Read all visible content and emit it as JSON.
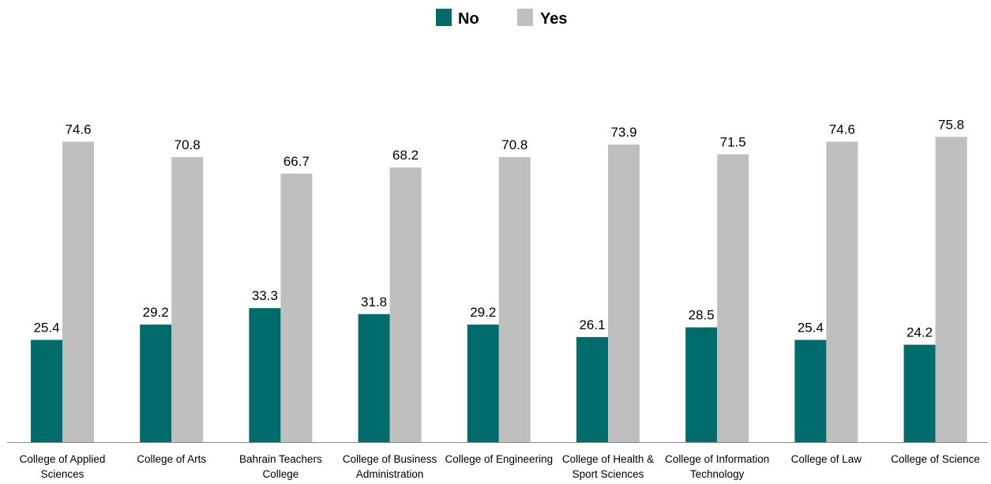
{
  "chart_data": {
    "type": "bar",
    "categories": [
      [
        "College of Applied",
        "Sciences"
      ],
      [
        "College of Arts"
      ],
      [
        "Bahrain Teachers",
        "College"
      ],
      [
        "College of Business",
        "Administration"
      ],
      [
        "College of Engineering"
      ],
      [
        "College of Health &",
        "Sport Sciences"
      ],
      [
        "College of Information",
        "Technology"
      ],
      [
        "College of Law"
      ],
      [
        "College of Science"
      ]
    ],
    "series": [
      {
        "name": "No",
        "color": "#006b6b",
        "values": [
          25.4,
          29.2,
          33.3,
          31.8,
          29.2,
          26.1,
          28.5,
          25.4,
          24.2
        ]
      },
      {
        "name": "Yes",
        "color": "#bfbfbf",
        "values": [
          74.6,
          70.8,
          66.7,
          68.2,
          70.8,
          73.9,
          71.5,
          74.6,
          75.8
        ]
      }
    ],
    "ylim": [
      0,
      100
    ],
    "grid": false,
    "legend_position": "top-center",
    "data_labels": true
  }
}
